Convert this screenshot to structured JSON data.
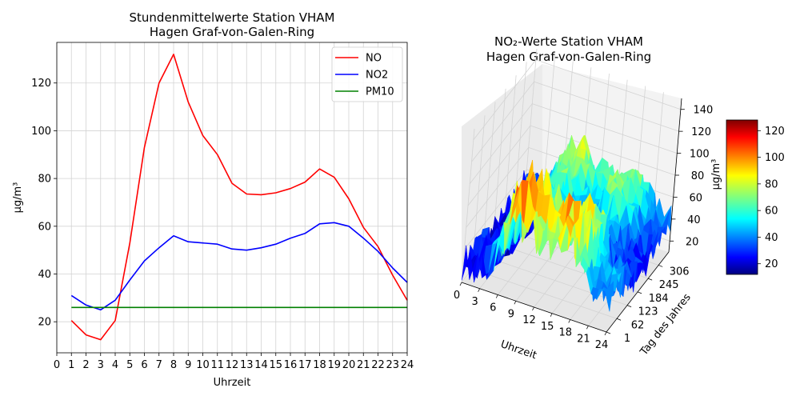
{
  "chart_data": [
    {
      "type": "line",
      "title_lines": [
        "Stundenmittelwerte Station VHAM",
        "Hagen Graf-von-Galen-Ring"
      ],
      "xlabel": "Uhrzeit",
      "ylabel": "µg/m³",
      "xlim": [
        0,
        24
      ],
      "ylim": [
        7,
        137
      ],
      "x_ticks": [
        0,
        1,
        2,
        3,
        4,
        5,
        6,
        7,
        8,
        9,
        10,
        11,
        12,
        13,
        14,
        15,
        16,
        17,
        18,
        19,
        20,
        21,
        22,
        23,
        24
      ],
      "y_ticks": [
        20,
        40,
        60,
        80,
        100,
        120
      ],
      "grid": true,
      "legend_position": "top-right",
      "x": [
        1,
        2,
        3,
        4,
        5,
        6,
        7,
        8,
        9,
        10,
        11,
        12,
        13,
        14,
        15,
        16,
        17,
        18,
        19,
        20,
        21,
        22,
        23,
        24
      ],
      "series": [
        {
          "name": "NO",
          "color": "#ff0000",
          "values": [
            20.5,
            14.5,
            12.5,
            20.5,
            53,
            93,
            120,
            132,
            112,
            98,
            90,
            78,
            73.5,
            73.2,
            74,
            75.8,
            78.5,
            84,
            80.5,
            71.5,
            59.5,
            51.5,
            39.5,
            29
          ]
        },
        {
          "name": "NO2",
          "color": "#0000ff",
          "values": [
            31,
            27,
            25,
            29,
            37.5,
            45.5,
            51,
            56,
            53.5,
            53,
            52.5,
            50.5,
            50,
            51,
            52.5,
            55,
            57,
            61,
            61.5,
            60,
            55,
            49.5,
            42.5,
            36.5
          ]
        },
        {
          "name": "PM10",
          "color": "#008000",
          "values": [
            26,
            26,
            26,
            26,
            26,
            26,
            26,
            26,
            26,
            26,
            26,
            26,
            26,
            26,
            26,
            26,
            26,
            26,
            26,
            26,
            26,
            26,
            26,
            26
          ]
        }
      ]
    },
    {
      "type": "surface3d",
      "title_lines": [
        "NO₂-Werte Station VHAM",
        "Hagen Graf-von-Galen-Ring"
      ],
      "xlabel": "Uhrzeit",
      "ylabel": "Tag des Jahres",
      "zlabel": "µg/m³",
      "x_ticks": [
        "0",
        "3",
        "6",
        "9",
        "12",
        "15",
        "18",
        "21",
        "24"
      ],
      "y_ticks": [
        "1",
        "62",
        "123",
        "184",
        "245",
        "306"
      ],
      "z_ticks": [
        "20",
        "40",
        "60",
        "80",
        "100",
        "120",
        "140"
      ],
      "xlim": [
        0,
        24
      ],
      "ylim": [
        1,
        366
      ],
      "zlim": [
        10,
        150
      ],
      "colorbar": {
        "ticks": [
          "20",
          "40",
          "60",
          "80",
          "100",
          "120"
        ],
        "range": [
          12,
          128
        ],
        "colormap": "jet"
      }
    }
  ]
}
